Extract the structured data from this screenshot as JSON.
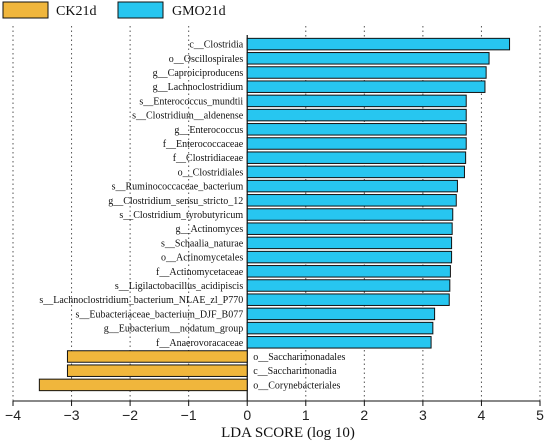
{
  "chart_data": {
    "type": "bar",
    "orientation": "horizontal",
    "xlabel": "LDA SCORE (log 10)",
    "xlim": [
      -4,
      5
    ],
    "xticks": [
      -4,
      -3,
      -2,
      -1,
      0,
      1,
      2,
      3,
      4,
      5
    ],
    "grid": "vertical dotted",
    "legend_position": "top-left",
    "series": [
      {
        "name": "CK21d",
        "color": "#f0b63c"
      },
      {
        "name": "GMO21d",
        "color": "#27c6f0"
      }
    ],
    "bars": [
      {
        "label": "c__Clostridia",
        "value": 4.48,
        "group": "GMO21d"
      },
      {
        "label": "o__Oscillospirales",
        "value": 4.13,
        "group": "GMO21d"
      },
      {
        "label": "g__Caproiciproducens",
        "value": 4.08,
        "group": "GMO21d"
      },
      {
        "label": "g__Lachnoclostridium",
        "value": 4.06,
        "group": "GMO21d"
      },
      {
        "label": "s__Enterococcus_mundtii",
        "value": 3.74,
        "group": "GMO21d"
      },
      {
        "label": "s__Clostridium__aldenense",
        "value": 3.74,
        "group": "GMO21d"
      },
      {
        "label": "g__Enterococcus",
        "value": 3.74,
        "group": "GMO21d"
      },
      {
        "label": "f__Enterococcaceae",
        "value": 3.74,
        "group": "GMO21d"
      },
      {
        "label": "f__Clostridiaceae",
        "value": 3.73,
        "group": "GMO21d"
      },
      {
        "label": "o__Clostridiales",
        "value": 3.71,
        "group": "GMO21d"
      },
      {
        "label": "s__Ruminococcaceae_bacterium",
        "value": 3.59,
        "group": "GMO21d"
      },
      {
        "label": "g__Clostridium_sensu_stricto_12",
        "value": 3.57,
        "group": "GMO21d"
      },
      {
        "label": "s__Clostridium_tyrobutyricum",
        "value": 3.51,
        "group": "GMO21d"
      },
      {
        "label": "g__Actinomyces",
        "value": 3.5,
        "group": "GMO21d"
      },
      {
        "label": "s__Schaalia_naturae",
        "value": 3.49,
        "group": "GMO21d"
      },
      {
        "label": "o__Actinomycetales",
        "value": 3.49,
        "group": "GMO21d"
      },
      {
        "label": "f__Actinomycetaceae",
        "value": 3.47,
        "group": "GMO21d"
      },
      {
        "label": "s__Ligilactobacillus_acidipiscis",
        "value": 3.46,
        "group": "GMO21d"
      },
      {
        "label": "s__Lachnoclostridium_bacterium_NLAE_zl_P770",
        "value": 3.45,
        "group": "GMO21d"
      },
      {
        "label": "s__Eubacteriaceae_bacterium_DJF_B077",
        "value": 3.2,
        "group": "GMO21d"
      },
      {
        "label": "g__Eubacterium__nodatum_group",
        "value": 3.17,
        "group": "GMO21d"
      },
      {
        "label": "f__Anaerovoracaceae",
        "value": 3.14,
        "group": "GMO21d"
      },
      {
        "label": "o__Saccharimonadales",
        "value": -3.07,
        "group": "CK21d"
      },
      {
        "label": "c__Saccharimonadia",
        "value": -3.07,
        "group": "CK21d"
      },
      {
        "label": "o__Corynebacteriales",
        "value": -3.55,
        "group": "CK21d"
      }
    ]
  }
}
